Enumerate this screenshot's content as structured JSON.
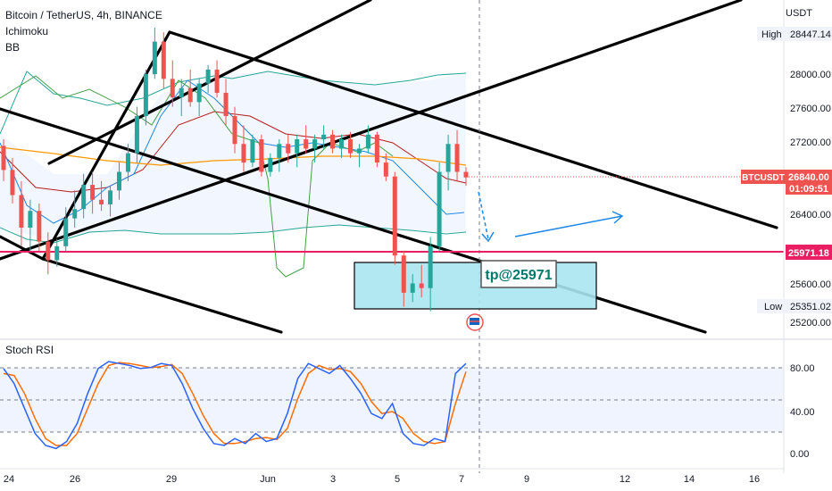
{
  "header": {
    "title": "Bitcoin / TetherUS, 4h, BINANCE",
    "indicators": [
      "Ichimoku",
      "BB"
    ]
  },
  "price_axis": {
    "currency": "USDT",
    "ticks": [
      "28000.00",
      "27600.00",
      "27200.00",
      "26400.00",
      "25600.00",
      "25200.00"
    ],
    "high_label": "High",
    "high_value": "28447.14",
    "low_label": "Low",
    "low_value": "25351.02",
    "current_symbol": "BTCUSDT",
    "current_price": "26840.00",
    "countdown": "01:09:51",
    "level_value": "25971.18"
  },
  "annotation": {
    "tp_label": "tp@25971"
  },
  "rsi": {
    "title": "Stoch RSI",
    "ticks": [
      "80.00",
      "40.00",
      "0.00"
    ]
  },
  "time_axis": [
    "24",
    "26",
    "29",
    "Jun",
    "3",
    "5",
    "7",
    "9",
    "12",
    "14",
    "16"
  ],
  "colors": {
    "up": "#26a69a",
    "down": "#ef5350",
    "bb": "#2962ff",
    "level": "#e91e63",
    "box": "#a8e6ef",
    "rsi_k": "#2962ff",
    "rsi_d": "#ff6d00"
  },
  "chart_data": {
    "type": "candlestick",
    "symbol": "BTCUSDT",
    "interval": "4h",
    "ylim": [
      25100,
      28700
    ],
    "candles": [
      [
        27180,
        27250,
        26800,
        26920
      ],
      [
        26920,
        27050,
        26560,
        26650
      ],
      [
        26650,
        26800,
        26100,
        26300
      ],
      [
        26300,
        26600,
        26050,
        26480
      ],
      [
        26480,
        26560,
        26050,
        26150
      ],
      [
        26150,
        26250,
        25800,
        25950
      ],
      [
        25950,
        26180,
        25880,
        26100
      ],
      [
        26100,
        26520,
        26050,
        26400
      ],
      [
        26400,
        26700,
        26300,
        26500
      ],
      [
        26500,
        26880,
        26400,
        26760
      ],
      [
        26760,
        26900,
        26450,
        26600
      ],
      [
        26600,
        26800,
        26480,
        26550
      ],
      [
        26550,
        26750,
        26420,
        26700
      ],
      [
        26700,
        27000,
        26600,
        26900
      ],
      [
        26900,
        27200,
        26800,
        27100
      ],
      [
        27100,
        27600,
        27000,
        27500
      ],
      [
        27500,
        28000,
        27400,
        27950
      ],
      [
        27950,
        28450,
        27900,
        28300
      ],
      [
        28300,
        28400,
        27800,
        27900
      ],
      [
        27900,
        28100,
        27600,
        27700
      ],
      [
        27700,
        27900,
        27500,
        27800
      ],
      [
        27800,
        28000,
        27600,
        27650
      ],
      [
        27650,
        27900,
        27500,
        27850
      ],
      [
        27850,
        28050,
        27750,
        28000
      ],
      [
        28000,
        28100,
        27700,
        27750
      ],
      [
        27750,
        27900,
        27400,
        27500
      ],
      [
        27500,
        27600,
        27100,
        27200
      ],
      [
        27200,
        27400,
        26900,
        27000
      ],
      [
        27000,
        27300,
        26950,
        27250
      ],
      [
        27250,
        27300,
        26850,
        26900
      ],
      [
        26900,
        27100,
        26850,
        27050
      ],
      [
        27050,
        27250,
        26900,
        27200
      ],
      [
        27200,
        27300,
        27000,
        27100
      ],
      [
        27100,
        27300,
        26950,
        27250
      ],
      [
        27250,
        27400,
        27100,
        27150
      ],
      [
        27150,
        27300,
        27000,
        27250
      ],
      [
        27250,
        27400,
        27150,
        27300
      ],
      [
        27300,
        27350,
        27100,
        27150
      ],
      [
        27150,
        27300,
        27050,
        27250
      ],
      [
        27250,
        27330,
        27050,
        27100
      ],
      [
        27100,
        27200,
        26950,
        27150
      ],
      [
        27150,
        27400,
        27100,
        27300
      ],
      [
        27300,
        27330,
        26950,
        27000
      ],
      [
        27000,
        27100,
        26800,
        26850
      ],
      [
        26850,
        26900,
        25900,
        26000
      ],
      [
        26000,
        26050,
        25450,
        25600
      ],
      [
        25600,
        25800,
        25500,
        25700
      ],
      [
        25700,
        25900,
        25550,
        25650
      ],
      [
        25650,
        26200,
        25400,
        26100
      ],
      [
        26100,
        27000,
        26050,
        26900
      ],
      [
        26900,
        27300,
        26700,
        27200
      ],
      [
        27200,
        27350,
        26800,
        26900
      ],
      [
        26900,
        26950,
        26750,
        26840
      ]
    ],
    "levels": [
      25971.18
    ],
    "stoch_rsi": {
      "k": [
        85,
        70,
        45,
        20,
        8,
        5,
        12,
        30,
        60,
        85,
        92,
        90,
        88,
        85,
        86,
        90,
        88,
        70,
        45,
        25,
        10,
        8,
        15,
        10,
        20,
        12,
        15,
        40,
        75,
        90,
        85,
        80,
        88,
        75,
        60,
        40,
        35,
        50,
        20,
        10,
        8,
        15,
        12,
        80,
        90
      ],
      "d": [
        80,
        78,
        60,
        35,
        15,
        8,
        8,
        20,
        45,
        70,
        88,
        91,
        90,
        88,
        86,
        87,
        89,
        80,
        60,
        38,
        20,
        10,
        10,
        12,
        15,
        16,
        14,
        25,
        55,
        80,
        88,
        84,
        85,
        82,
        70,
        52,
        40,
        42,
        35,
        20,
        12,
        10,
        12,
        50,
        82
      ]
    }
  }
}
